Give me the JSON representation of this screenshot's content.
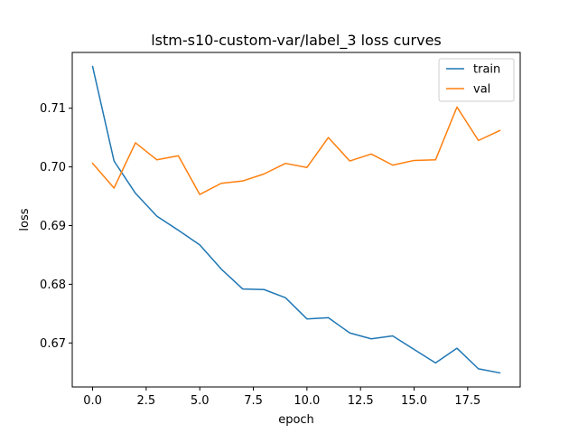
{
  "chart_data": {
    "type": "line",
    "title": "lstm-s10-custom-var/label_3 loss curves",
    "xlabel": "epoch",
    "ylabel": "loss",
    "xlim": [
      -0.95,
      19.95
    ],
    "ylim": [
      0.6625,
      0.7195
    ],
    "xticks": [
      0,
      2.5,
      5,
      7.5,
      10,
      12.5,
      15,
      17.5
    ],
    "xtick_labels": [
      "0.0",
      "2.5",
      "5.0",
      "7.5",
      "10.0",
      "12.5",
      "15.0",
      "17.5"
    ],
    "yticks": [
      0.67,
      0.68,
      0.69,
      0.7,
      0.71
    ],
    "ytick_labels": [
      "0.67",
      "0.68",
      "0.69",
      "0.70",
      "0.71"
    ],
    "grid": false,
    "legend_position": "top-right",
    "x": [
      0,
      1,
      2,
      3,
      4,
      5,
      6,
      7,
      8,
      9,
      10,
      11,
      12,
      13,
      14,
      15,
      16,
      17,
      18,
      19
    ],
    "series": [
      {
        "name": "train",
        "color": "#1f77b4",
        "values": [
          0.7171,
          0.701,
          0.6955,
          0.6916,
          0.6892,
          0.6867,
          0.6826,
          0.6792,
          0.6791,
          0.6777,
          0.6741,
          0.6743,
          0.6717,
          0.6707,
          0.6712,
          0.6689,
          0.6666,
          0.6691,
          0.6656,
          0.6649
        ]
      },
      {
        "name": "val",
        "color": "#ff7f0e",
        "values": [
          0.7006,
          0.6964,
          0.7041,
          0.7012,
          0.7019,
          0.6953,
          0.6972,
          0.6976,
          0.6988,
          0.7006,
          0.6999,
          0.705,
          0.701,
          0.7022,
          0.7003,
          0.7011,
          0.7012,
          0.7102,
          0.7045,
          0.7062
        ]
      }
    ]
  }
}
